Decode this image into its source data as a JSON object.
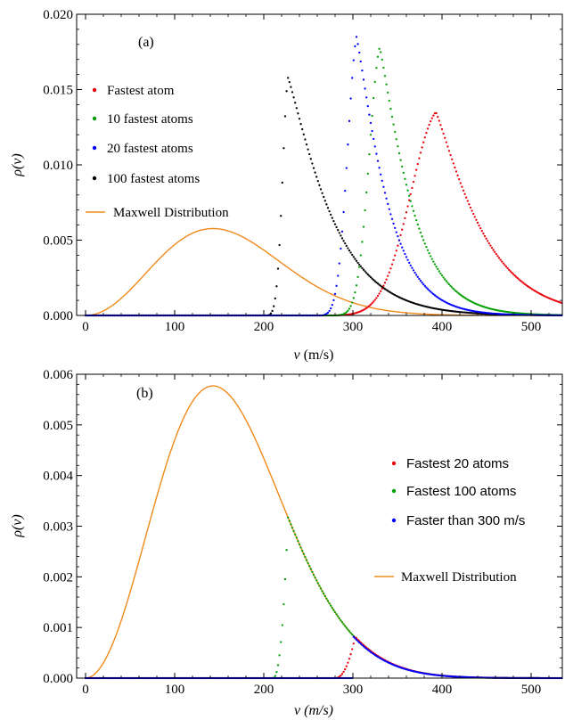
{
  "chart_data": [
    {
      "type": "scatter",
      "panel_label": "(a)",
      "xlabel_var": "v",
      "xlabel_unit": " (m/s)",
      "ylabel": "ρ(v)",
      "xlim": [
        -10,
        535
      ],
      "ylim": [
        0,
        0.02
      ],
      "x_ticks": [
        0,
        100,
        200,
        300,
        400,
        500
      ],
      "y_ticks": [
        0.0,
        0.005,
        0.01,
        0.015,
        0.02
      ],
      "y_tick_labels": [
        "0.000",
        "0.005",
        "0.010",
        "0.015",
        "0.020"
      ],
      "legend_position": "upper-left",
      "series": [
        {
          "name": "Fastest atom",
          "color": "#e8000b",
          "marker": "dots",
          "onset": 280,
          "peak_x": 393,
          "peak_y": 0.0135,
          "rise_width": 45,
          "decay_scale": 58
        },
        {
          "name": "10 fastest atoms",
          "color": "#00a000",
          "marker": "dots",
          "onset": 282,
          "peak_x": 330,
          "peak_y": 0.0178,
          "rise_width": 18,
          "decay_scale": 40
        },
        {
          "name": "20 fastest atoms",
          "color": "#0000ff",
          "marker": "dots",
          "onset": 266,
          "peak_x": 304,
          "peak_y": 0.0185,
          "rise_width": 17,
          "decay_scale": 38
        },
        {
          "name": "100 fastest atoms",
          "color": "#000000",
          "marker": "dots",
          "onset": 205,
          "peak_x": 227,
          "peak_y": 0.0158,
          "rise_width": 10,
          "decay_scale": 55
        },
        {
          "name": "Maxwell Distribution",
          "color": "#f08a1c",
          "marker": "line",
          "peak_x": 143,
          "peak_y": 0.00577
        }
      ]
    },
    {
      "type": "scatter",
      "panel_label": "(b)",
      "xlabel_var": "v",
      "xlabel_unit": " (m/s)",
      "ylabel": "ρ(v)",
      "xlim": [
        -10,
        535
      ],
      "ylim": [
        0,
        0.006
      ],
      "x_ticks": [
        0,
        100,
        200,
        300,
        400,
        500
      ],
      "y_ticks": [
        0.0,
        0.001,
        0.002,
        0.003,
        0.004,
        0.005,
        0.006
      ],
      "y_tick_labels": [
        "0.000",
        "0.001",
        "0.002",
        "0.003",
        "0.004",
        "0.005",
        "0.006"
      ],
      "legend_position": "right",
      "series": [
        {
          "name": "Fastest 20 atoms",
          "color": "#e8000b",
          "marker": "dots",
          "onset": 280,
          "peak_x": 303,
          "peak_y": 0.00085
        },
        {
          "name": "Fastest 100 atoms",
          "color": "#00a000",
          "marker": "dots",
          "onset": 210,
          "peak_x": 227,
          "peak_y": 0.00311
        },
        {
          "name": "Faster than 300 m/s",
          "color": "#0000ff",
          "marker": "dots",
          "onset": 300,
          "peak_x": 300,
          "peak_y": 0.00087
        },
        {
          "name": "Maxwell Distribution",
          "color": "#f08a1c",
          "marker": "line",
          "peak_x": 143,
          "peak_y": 0.00577
        }
      ]
    }
  ]
}
